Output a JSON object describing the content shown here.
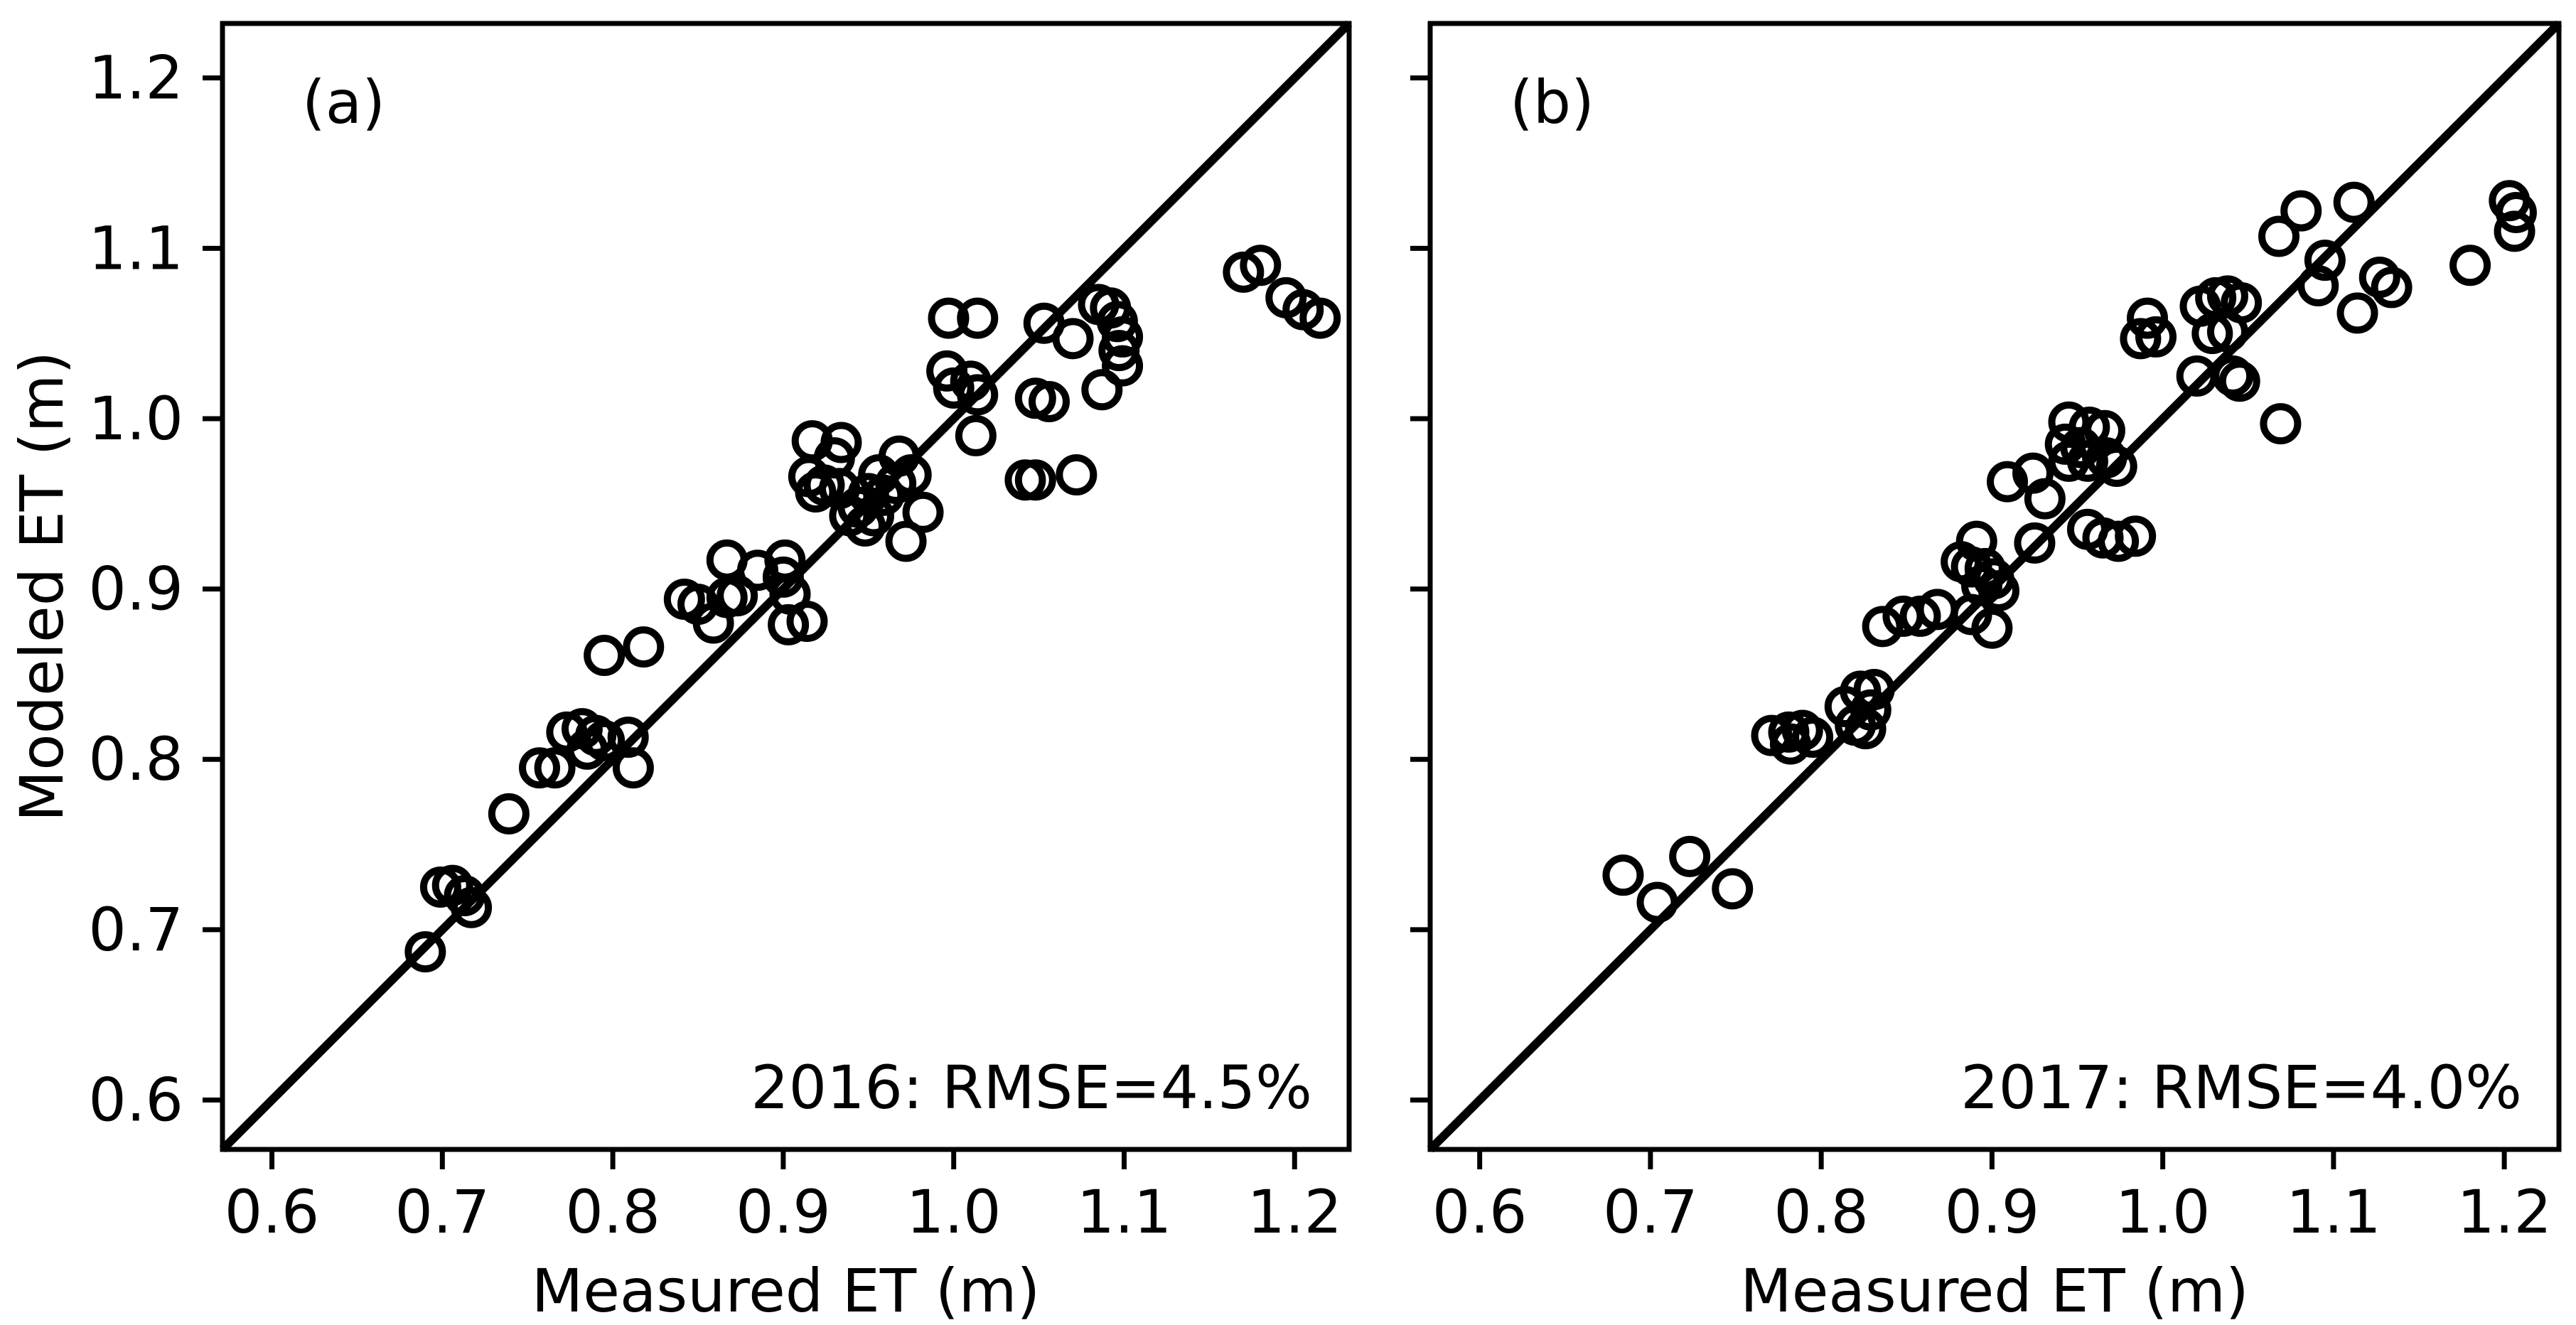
{
  "figure": {
    "background_color": "#ffffff",
    "ink_color": "#000000",
    "ylabel": "Modeled ET (m)",
    "xlabel": "Measured ET (m)"
  },
  "chart_data": [
    {
      "type": "scatter",
      "panel_label": "(a)",
      "annotation": "2016: RMSE=4.5%",
      "xlabel": "Measured ET (m)",
      "ylabel": "Modeled ET (m)",
      "xlim": [
        0.571,
        1.232
      ],
      "ylim": [
        0.571,
        1.232
      ],
      "tick_values": [
        0.6,
        0.7,
        0.8,
        0.9,
        1.0,
        1.1,
        1.2
      ],
      "xtick_labels": [
        "0.6",
        "0.7",
        "0.8",
        "0.9",
        "1.0",
        "1.1",
        "1.2"
      ],
      "ytick_labels": [
        "0.6",
        "0.7",
        "0.8",
        "0.9",
        "1.0",
        "1.1",
        "1.2"
      ],
      "show_ytick_labels": true,
      "identity_line": true,
      "legend": "none",
      "grid": false,
      "marker": "open-circle",
      "points": [
        [
          0.69,
          0.687
        ],
        [
          0.699,
          0.725
        ],
        [
          0.706,
          0.726
        ],
        [
          0.713,
          0.72
        ],
        [
          0.717,
          0.713
        ],
        [
          0.739,
          0.768
        ],
        [
          0.757,
          0.795
        ],
        [
          0.766,
          0.795
        ],
        [
          0.773,
          0.816
        ],
        [
          0.782,
          0.818
        ],
        [
          0.79,
          0.814
        ],
        [
          0.795,
          0.811
        ],
        [
          0.785,
          0.806
        ],
        [
          0.809,
          0.813
        ],
        [
          0.812,
          0.795
        ],
        [
          0.795,
          0.861
        ],
        [
          0.818,
          0.866
        ],
        [
          0.842,
          0.894
        ],
        [
          0.85,
          0.891
        ],
        [
          0.859,
          0.88
        ],
        [
          0.867,
          0.895
        ],
        [
          0.873,
          0.896
        ],
        [
          0.867,
          0.917
        ],
        [
          0.885,
          0.911
        ],
        [
          0.901,
          0.917
        ],
        [
          0.9,
          0.907
        ],
        [
          0.904,
          0.897
        ],
        [
          0.903,
          0.879
        ],
        [
          0.914,
          0.881
        ],
        [
          0.917,
          0.987
        ],
        [
          0.934,
          0.986
        ],
        [
          0.93,
          0.977
        ],
        [
          0.915,
          0.966
        ],
        [
          0.924,
          0.961
        ],
        [
          0.919,
          0.957
        ],
        [
          0.933,
          0.959
        ],
        [
          0.956,
          0.967
        ],
        [
          0.968,
          0.978
        ],
        [
          0.975,
          0.967
        ],
        [
          0.966,
          0.962
        ],
        [
          0.95,
          0.956
        ],
        [
          0.959,
          0.955
        ],
        [
          0.944,
          0.948
        ],
        [
          0.953,
          0.943
        ],
        [
          0.939,
          0.943
        ],
        [
          0.948,
          0.937
        ],
        [
          0.982,
          0.945
        ],
        [
          0.972,
          0.928
        ],
        [
          0.997,
          1.059
        ],
        [
          1.014,
          1.059
        ],
        [
          0.996,
          1.028
        ],
        [
          1.0,
          1.018
        ],
        [
          1.01,
          1.022
        ],
        [
          1.014,
          1.014
        ],
        [
          1.013,
          0.99
        ],
        [
          1.048,
          1.012
        ],
        [
          1.056,
          1.01
        ],
        [
          1.053,
          1.056
        ],
        [
          1.07,
          1.047
        ],
        [
          1.085,
          1.067
        ],
        [
          1.092,
          1.065
        ],
        [
          1.096,
          1.057
        ],
        [
          1.099,
          1.048
        ],
        [
          1.097,
          1.04
        ],
        [
          1.099,
          1.031
        ],
        [
          1.087,
          1.017
        ],
        [
          1.042,
          0.964
        ],
        [
          1.048,
          0.964
        ],
        [
          1.072,
          0.967
        ],
        [
          1.17,
          1.086
        ],
        [
          1.18,
          1.09
        ],
        [
          1.195,
          1.071
        ],
        [
          1.205,
          1.064
        ],
        [
          1.215,
          1.059
        ]
      ]
    },
    {
      "type": "scatter",
      "panel_label": "(b)",
      "annotation": "2017: RMSE=4.0%",
      "xlabel": "Measured ET (m)",
      "ylabel": "",
      "xlim": [
        0.571,
        1.232
      ],
      "ylim": [
        0.571,
        1.232
      ],
      "tick_values": [
        0.6,
        0.7,
        0.8,
        0.9,
        1.0,
        1.1,
        1.2
      ],
      "xtick_labels": [
        "0.6",
        "0.7",
        "0.8",
        "0.9",
        "1.0",
        "1.1",
        "1.2"
      ],
      "ytick_labels": [],
      "show_ytick_labels": false,
      "identity_line": true,
      "legend": "none",
      "grid": false,
      "marker": "open-circle",
      "points": [
        [
          0.684,
          0.732
        ],
        [
          0.704,
          0.716
        ],
        [
          0.723,
          0.743
        ],
        [
          0.748,
          0.724
        ],
        [
          0.771,
          0.814
        ],
        [
          0.781,
          0.816
        ],
        [
          0.789,
          0.817
        ],
        [
          0.795,
          0.813
        ],
        [
          0.782,
          0.809
        ],
        [
          0.814,
          0.831
        ],
        [
          0.823,
          0.84
        ],
        [
          0.831,
          0.841
        ],
        [
          0.829,
          0.829
        ],
        [
          0.82,
          0.82
        ],
        [
          0.826,
          0.818
        ],
        [
          0.836,
          0.878
        ],
        [
          0.848,
          0.884
        ],
        [
          0.858,
          0.884
        ],
        [
          0.868,
          0.888
        ],
        [
          0.888,
          0.885
        ],
        [
          0.9,
          0.877
        ],
        [
          0.882,
          0.916
        ],
        [
          0.891,
          0.928
        ],
        [
          0.888,
          0.913
        ],
        [
          0.896,
          0.912
        ],
        [
          0.901,
          0.906
        ],
        [
          0.894,
          0.902
        ],
        [
          0.904,
          0.899
        ],
        [
          0.925,
          0.927
        ],
        [
          0.909,
          0.963
        ],
        [
          0.924,
          0.968
        ],
        [
          0.931,
          0.953
        ],
        [
          0.945,
          0.998
        ],
        [
          0.957,
          0.995
        ],
        [
          0.966,
          0.993
        ],
        [
          0.943,
          0.985
        ],
        [
          0.952,
          0.983
        ],
        [
          0.945,
          0.975
        ],
        [
          0.956,
          0.975
        ],
        [
          0.967,
          0.977
        ],
        [
          0.973,
          0.972
        ],
        [
          0.956,
          0.935
        ],
        [
          0.965,
          0.93
        ],
        [
          0.974,
          0.928
        ],
        [
          0.984,
          0.931
        ],
        [
          0.987,
          1.047
        ],
        [
          0.991,
          1.059
        ],
        [
          0.996,
          1.048
        ],
        [
          1.022,
          1.066
        ],
        [
          1.031,
          1.071
        ],
        [
          1.038,
          1.072
        ],
        [
          1.046,
          1.068
        ],
        [
          1.029,
          1.05
        ],
        [
          1.038,
          1.051
        ],
        [
          1.02,
          1.025
        ],
        [
          1.041,
          1.025
        ],
        [
          1.045,
          1.022
        ],
        [
          1.069,
          0.997
        ],
        [
          1.068,
          1.107
        ],
        [
          1.081,
          1.122
        ],
        [
          1.112,
          1.127
        ],
        [
          1.095,
          1.093
        ],
        [
          1.091,
          1.078
        ],
        [
          1.127,
          1.083
        ],
        [
          1.134,
          1.077
        ],
        [
          1.114,
          1.062
        ],
        [
          1.18,
          1.09
        ],
        [
          1.203,
          1.128
        ],
        [
          1.207,
          1.121
        ],
        [
          1.206,
          1.11
        ]
      ]
    }
  ]
}
